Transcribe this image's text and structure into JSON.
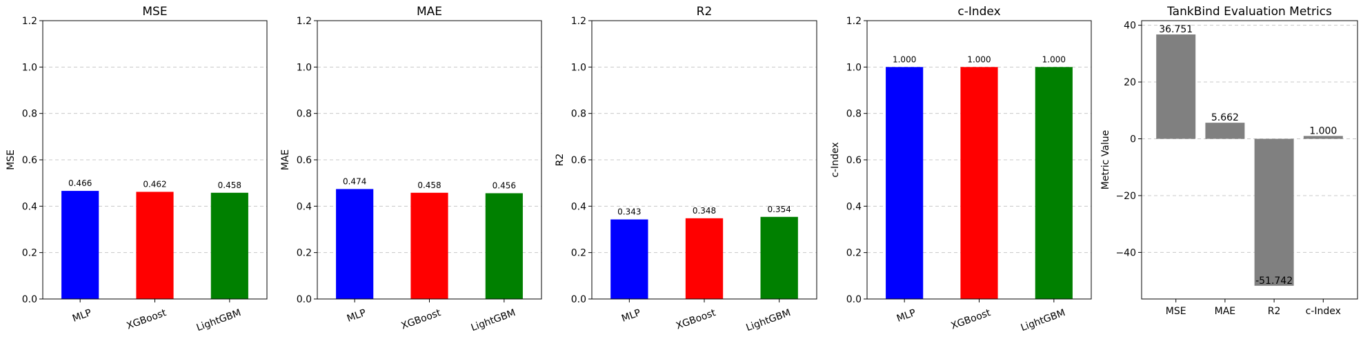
{
  "chart_data": [
    {
      "type": "bar",
      "title": "MSE",
      "ylabel": "MSE",
      "categories": [
        "MLP",
        "XGBoost",
        "LightGBM"
      ],
      "values": [
        0.466,
        0.462,
        0.458
      ],
      "value_labels": [
        "0.466",
        "0.462",
        "0.458"
      ],
      "colors": [
        "#0000ff",
        "#ff0000",
        "#008000"
      ],
      "ylim": [
        0,
        1.2
      ],
      "yticks": [
        0.0,
        0.2,
        0.4,
        0.6,
        0.8,
        1.0,
        1.2
      ],
      "ytick_labels": [
        "0.0",
        "0.2",
        "0.4",
        "0.6",
        "0.8",
        "1.0",
        "1.2"
      ],
      "grid": "y-dashed",
      "xtick_rotation": "slanted"
    },
    {
      "type": "bar",
      "title": "MAE",
      "ylabel": "MAE",
      "categories": [
        "MLP",
        "XGBoost",
        "LightGBM"
      ],
      "values": [
        0.474,
        0.458,
        0.456
      ],
      "value_labels": [
        "0.474",
        "0.458",
        "0.456"
      ],
      "colors": [
        "#0000ff",
        "#ff0000",
        "#008000"
      ],
      "ylim": [
        0,
        1.2
      ],
      "yticks": [
        0.0,
        0.2,
        0.4,
        0.6,
        0.8,
        1.0,
        1.2
      ],
      "ytick_labels": [
        "0.0",
        "0.2",
        "0.4",
        "0.6",
        "0.8",
        "1.0",
        "1.2"
      ],
      "grid": "y-dashed",
      "xtick_rotation": "slanted"
    },
    {
      "type": "bar",
      "title": "R2",
      "ylabel": "R2",
      "categories": [
        "MLP",
        "XGBoost",
        "LightGBM"
      ],
      "values": [
        0.343,
        0.348,
        0.354
      ],
      "value_labels": [
        "0.343",
        "0.348",
        "0.354"
      ],
      "colors": [
        "#0000ff",
        "#ff0000",
        "#008000"
      ],
      "ylim": [
        0,
        1.2
      ],
      "yticks": [
        0.0,
        0.2,
        0.4,
        0.6,
        0.8,
        1.0,
        1.2
      ],
      "ytick_labels": [
        "0.0",
        "0.2",
        "0.4",
        "0.6",
        "0.8",
        "1.0",
        "1.2"
      ],
      "grid": "y-dashed",
      "xtick_rotation": "slanted"
    },
    {
      "type": "bar",
      "title": "c-Index",
      "ylabel": "c-Index",
      "categories": [
        "MLP",
        "XGBoost",
        "LightGBM"
      ],
      "values": [
        1.0,
        1.0,
        1.0
      ],
      "value_labels": [
        "1.000",
        "1.000",
        "1.000"
      ],
      "colors": [
        "#0000ff",
        "#ff0000",
        "#008000"
      ],
      "ylim": [
        0,
        1.2
      ],
      "yticks": [
        0.0,
        0.2,
        0.4,
        0.6,
        0.8,
        1.0,
        1.2
      ],
      "ytick_labels": [
        "0.0",
        "0.2",
        "0.4",
        "0.6",
        "0.8",
        "1.0",
        "1.2"
      ],
      "grid": "y-dashed",
      "xtick_rotation": "slanted"
    },
    {
      "type": "bar",
      "title": "TankBind Evaluation Metrics",
      "ylabel": "Metric Value",
      "categories": [
        "MSE",
        "MAE",
        "R2",
        "c-Index"
      ],
      "values": [
        36.751,
        5.662,
        -51.742,
        1.0
      ],
      "value_labels": [
        "36.751",
        "5.662",
        "-51.742",
        "1.000"
      ],
      "colors": [
        "#808080",
        "#808080",
        "#808080",
        "#808080"
      ],
      "ylim": [
        -56.4,
        41.6
      ],
      "yticks": [
        -40,
        -20,
        0,
        20,
        40
      ],
      "ytick_labels": [
        "−40",
        "−20",
        "0",
        "20",
        "40"
      ],
      "grid": "y-dashed",
      "xtick_rotation": "none"
    }
  ]
}
